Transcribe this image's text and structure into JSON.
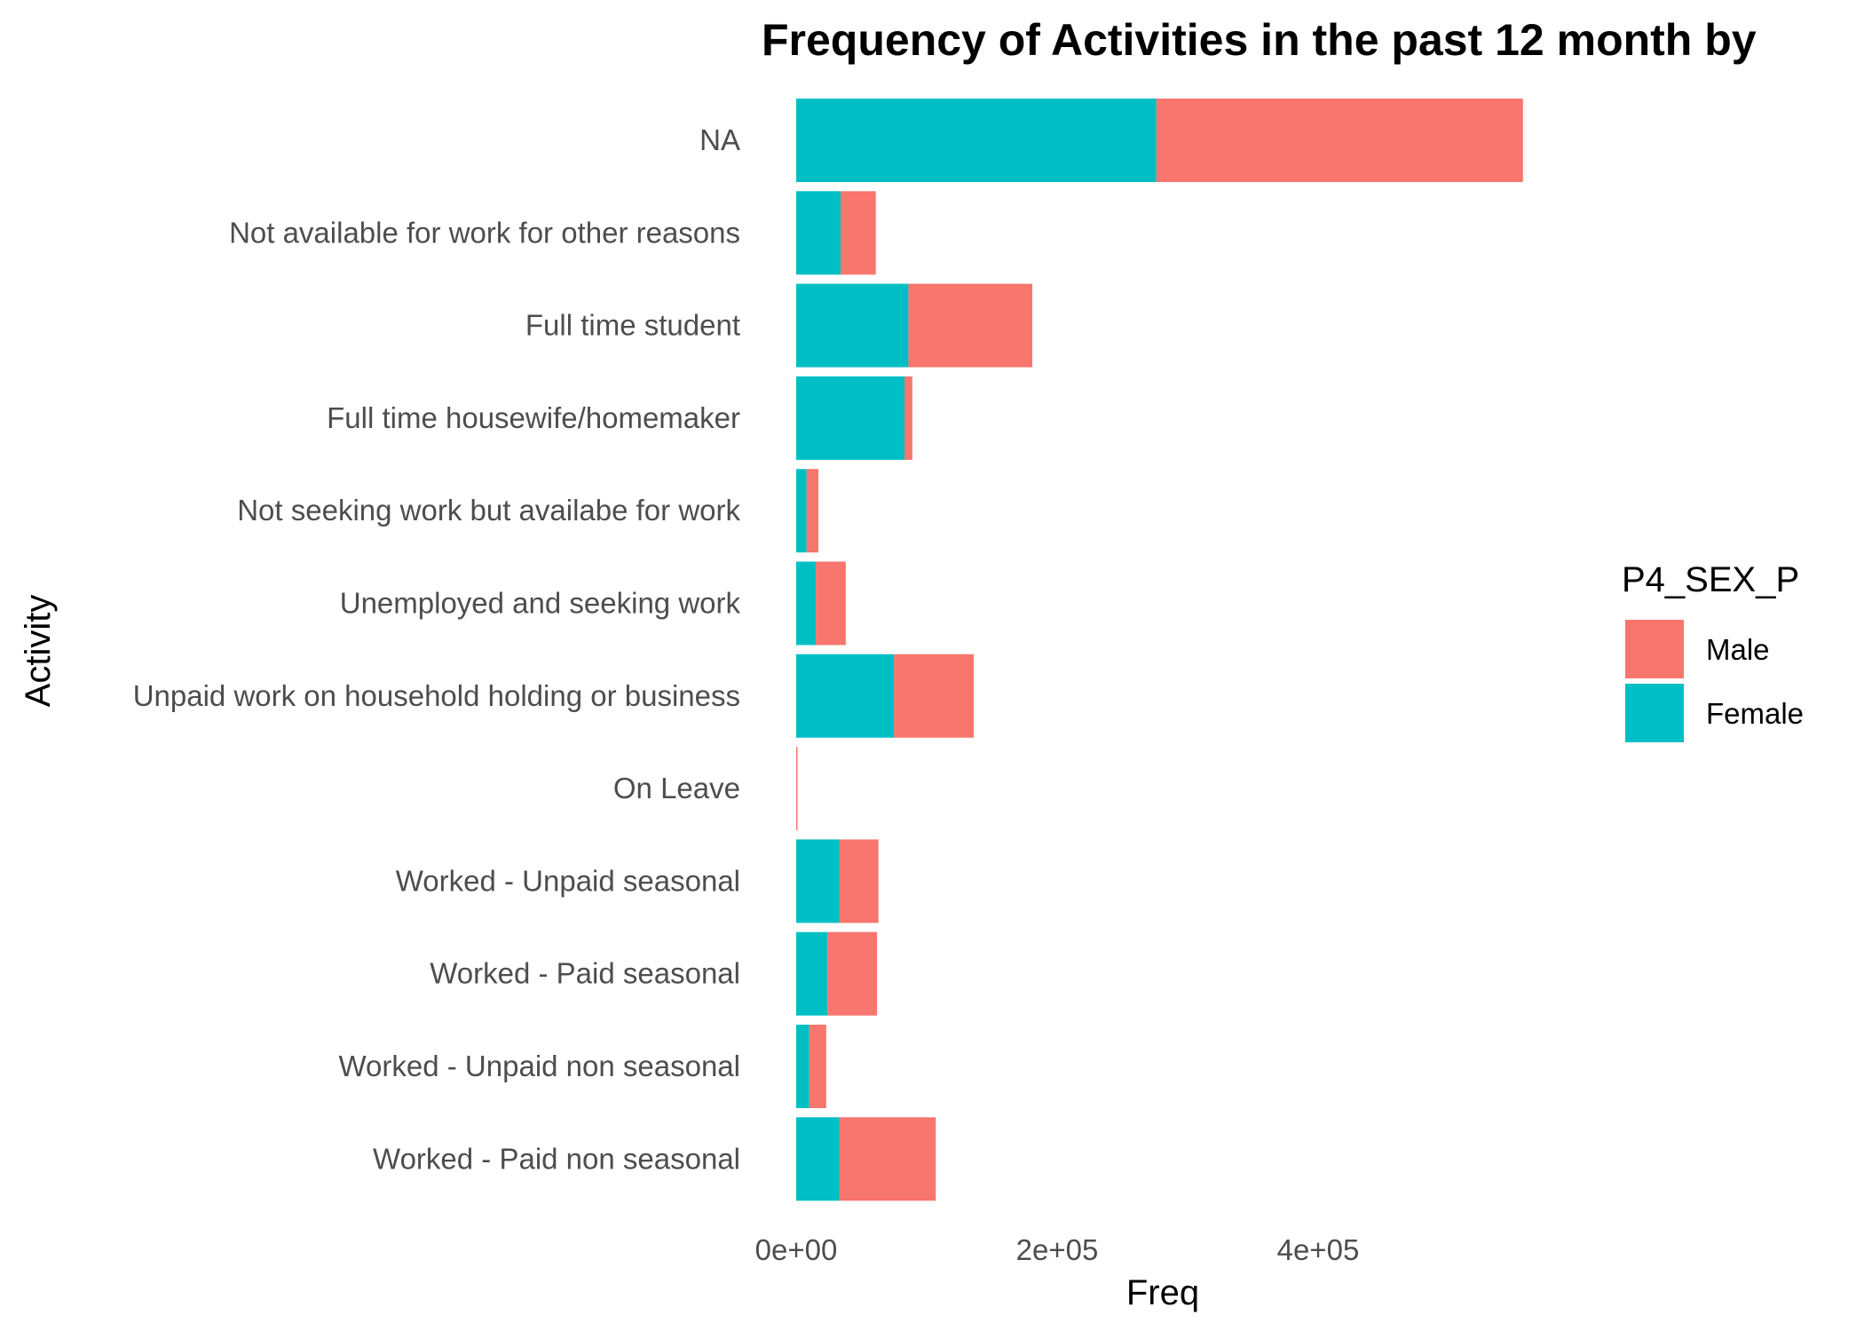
{
  "chart_data": {
    "type": "bar",
    "orientation": "horizontal",
    "stacked": true,
    "title": "Frequency of Activities in the past 12 month by",
    "xlabel": "Freq",
    "ylabel": "Activity",
    "xlim": [
      0,
      560000
    ],
    "x_ticks": [
      {
        "value": 0,
        "label": "0e+00"
      },
      {
        "value": 200000,
        "label": "2e+05"
      },
      {
        "value": 400000,
        "label": "4e+05"
      }
    ],
    "grid": false,
    "legend": {
      "title": "P4_SEX_P",
      "position": "right"
    },
    "categories": [
      "NA",
      "Not available for work for other reasons",
      "Full time student",
      "Full time housewife/homemaker",
      "Not seeking work but availabe for work",
      "Unemployed and seeking work",
      "Unpaid work on household holding or business",
      "On Leave",
      "Worked - Unpaid seasonal",
      "Worked - Paid seasonal",
      "Worked - Unpaid non seasonal",
      "Worked - Paid non seasonal"
    ],
    "series": [
      {
        "name": "Male",
        "color": "#F8766D",
        "values": [
          281000,
          27000,
          95000,
          6000,
          9000,
          23000,
          61000,
          1000,
          30000,
          38000,
          13000,
          74000
        ]
      },
      {
        "name": "Female",
        "color": "#00BFC4",
        "values": [
          276000,
          34000,
          86000,
          83000,
          8000,
          15000,
          75000,
          0,
          33000,
          24000,
          10000,
          33000
        ]
      }
    ]
  }
}
